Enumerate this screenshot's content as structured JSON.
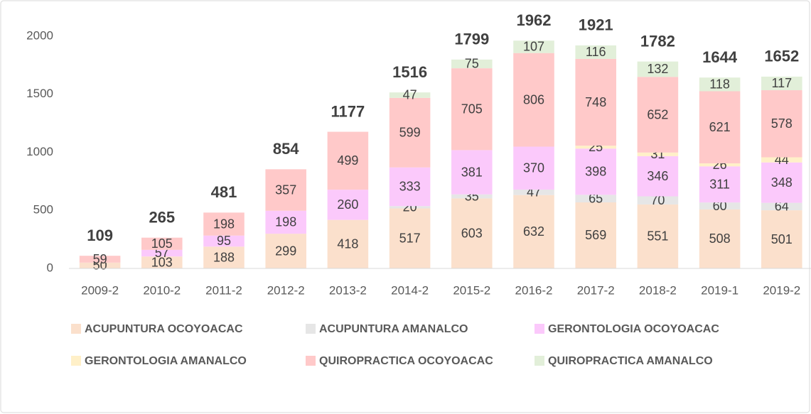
{
  "chart_data": {
    "type": "stacked-bar",
    "categories": [
      "2009-2",
      "2010-2",
      "2011-2",
      "2012-2",
      "2013-2",
      "2014-2",
      "2015-2",
      "2016-2",
      "2017-2",
      "2018-2",
      "2019-1",
      "2019-2"
    ],
    "series": [
      {
        "name": "ACUPUNTURA OCOYOACAC",
        "color": "#fbe0cc",
        "values": [
          50,
          103,
          188,
          299,
          418,
          517,
          603,
          632,
          569,
          551,
          508,
          501
        ]
      },
      {
        "name": "ACUPUNTURA AMANALCO",
        "color": "#e6e6e6",
        "values": [
          null,
          null,
          null,
          null,
          null,
          20,
          35,
          47,
          65,
          70,
          60,
          64
        ]
      },
      {
        "name": "GERONTOLOGIA OCOYOACAC",
        "color": "#fbc9fb",
        "values": [
          null,
          57,
          95,
          198,
          260,
          333,
          381,
          370,
          398,
          346,
          311,
          348
        ]
      },
      {
        "name": "GERONTOLOGIA AMANALCO",
        "color": "#fff0c8",
        "values": [
          null,
          null,
          null,
          null,
          null,
          null,
          null,
          null,
          25,
          31,
          26,
          44
        ]
      },
      {
        "name": "QUIROPRACTICA OCOYOACAC",
        "color": "#ffc9c9",
        "values": [
          59,
          105,
          198,
          357,
          499,
          599,
          705,
          806,
          748,
          652,
          621,
          578
        ]
      },
      {
        "name": "QUIROPRACTICA AMANALCO",
        "color": "#e2efd9",
        "values": [
          null,
          null,
          null,
          null,
          null,
          47,
          75,
          107,
          116,
          132,
          118,
          117
        ]
      }
    ],
    "totals": [
      109,
      265,
      481,
      854,
      1177,
      1516,
      1799,
      1962,
      1921,
      1782,
      1644,
      1652
    ],
    "ylim": [
      0,
      2000
    ],
    "yticks": [
      0,
      500,
      1000,
      1500,
      2000
    ],
    "grid": false,
    "legend": "bottom"
  }
}
